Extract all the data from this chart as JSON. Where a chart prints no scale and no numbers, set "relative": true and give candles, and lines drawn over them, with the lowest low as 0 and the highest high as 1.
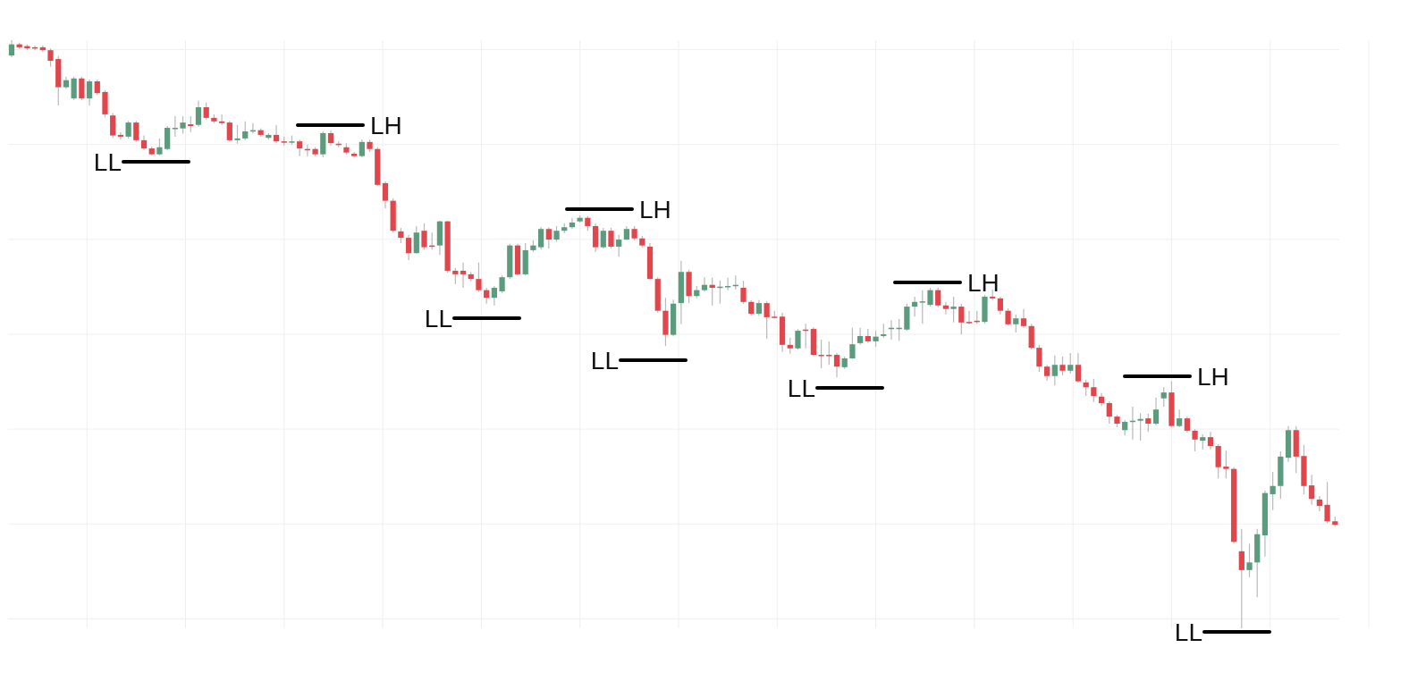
{
  "chart_data": {
    "type": "candlestick",
    "relative": true,
    "grid": true,
    "categories": [
      null,
      null,
      null,
      null,
      null,
      null,
      null,
      null,
      null,
      null,
      null,
      null,
      null,
      null,
      null,
      null,
      null,
      null,
      null,
      null,
      null,
      null,
      null,
      null,
      null,
      null,
      null,
      null,
      null,
      null,
      null,
      null,
      null,
      null,
      null,
      null,
      null,
      null,
      null,
      null,
      null,
      null,
      null,
      null,
      null,
      null,
      null,
      null,
      null,
      null,
      null,
      null,
      null,
      null,
      null,
      null,
      null,
      null,
      null,
      null,
      null,
      null,
      null,
      null,
      null,
      null,
      null,
      null,
      null,
      null,
      null,
      null,
      null,
      null,
      null,
      null,
      null,
      null,
      null,
      null,
      null,
      null,
      null,
      null,
      null,
      null,
      null,
      null,
      null,
      null,
      null,
      null,
      null,
      null,
      null,
      null,
      null,
      null,
      null,
      null,
      null,
      null,
      null,
      null,
      null,
      null,
      null,
      null,
      null,
      null,
      null,
      null,
      null,
      null,
      null,
      null,
      null,
      null,
      null,
      null,
      null,
      null,
      null,
      null,
      null,
      null,
      null,
      null,
      null,
      null,
      null,
      null,
      null,
      null,
      null,
      null,
      null,
      null,
      null,
      null,
      null,
      null,
      null,
      null,
      null,
      null,
      null,
      null,
      null,
      null,
      null,
      null,
      null,
      null,
      null,
      null,
      null,
      null,
      null,
      null,
      null,
      null,
      null,
      null,
      null,
      null,
      null,
      null,
      null,
      null,
      null
    ],
    "ohlc": [
      [
        0.974,
        1,
        0.971,
        0.993
      ],
      [
        0.993,
        0.996,
        0.985,
        0.988
      ],
      [
        0.99,
        0.993,
        0.983,
        0.986
      ],
      [
        0.988,
        0.991,
        0.983,
        0.986
      ],
      [
        0.988,
        0.991,
        0.98,
        0.983
      ],
      [
        0.983,
        0.986,
        0.955,
        0.965
      ],
      [
        0.968,
        0.973,
        0.889,
        0.92
      ],
      [
        0.92,
        0.938,
        0.917,
        0.932
      ],
      [
        0.901,
        0.938,
        0.898,
        0.935
      ],
      [
        0.935,
        0.938,
        0.898,
        0.901
      ],
      [
        0.901,
        0.933,
        0.889,
        0.93
      ],
      [
        0.93,
        0.933,
        0.907,
        0.91
      ],
      [
        0.912,
        0.915,
        0.869,
        0.874
      ],
      [
        0.872,
        0.876,
        0.834,
        0.838
      ],
      [
        0.839,
        0.844,
        0.831,
        0.836
      ],
      [
        0.836,
        0.863,
        0.833,
        0.86
      ],
      [
        0.86,
        0.863,
        0.827,
        0.83
      ],
      [
        0.83,
        0.838,
        0.813,
        0.816
      ],
      [
        0.816,
        0.819,
        0.804,
        0.806
      ],
      [
        0.806,
        0.833,
        0.804,
        0.818
      ],
      [
        0.815,
        0.854,
        0.813,
        0.851
      ],
      [
        0.85,
        0.871,
        0.836,
        0.851
      ],
      [
        0.85,
        0.871,
        0.841,
        0.86
      ],
      [
        0.857,
        0.871,
        0.844,
        0.854
      ],
      [
        0.856,
        0.897,
        0.853,
        0.886
      ],
      [
        0.886,
        0.894,
        0.865,
        0.868
      ],
      [
        0.868,
        0.874,
        0.859,
        0.862
      ],
      [
        0.862,
        0.874,
        0.856,
        0.859
      ],
      [
        0.86,
        0.863,
        0.828,
        0.83
      ],
      [
        0.83,
        0.856,
        0.824,
        0.833
      ],
      [
        0.833,
        0.862,
        0.83,
        0.845
      ],
      [
        0.845,
        0.859,
        0.841,
        0.847
      ],
      [
        0.847,
        0.85,
        0.836,
        0.839
      ],
      [
        0.834,
        0.842,
        0.831,
        0.839
      ],
      [
        0.839,
        0.856,
        0.825,
        0.828
      ],
      [
        0.828,
        0.836,
        0.821,
        0.827
      ],
      [
        0.827,
        0.838,
        0.822,
        0.828
      ],
      [
        0.828,
        0.831,
        0.803,
        0.816
      ],
      [
        0.815,
        0.822,
        0.803,
        0.813
      ],
      [
        0.815,
        0.818,
        0.803,
        0.806
      ],
      [
        0.806,
        0.845,
        0.801,
        0.842
      ],
      [
        0.842,
        0.847,
        0.821,
        0.825
      ],
      [
        0.824,
        0.828,
        0.818,
        0.822
      ],
      [
        0.818,
        0.825,
        0.806,
        0.809
      ],
      [
        0.807,
        0.81,
        0.8,
        0.803
      ],
      [
        0.803,
        0.831,
        0.801,
        0.827
      ],
      [
        0.827,
        0.831,
        0.81,
        0.815
      ],
      [
        0.815,
        0.818,
        0.752,
        0.754
      ],
      [
        0.757,
        0.76,
        0.714,
        0.727
      ],
      [
        0.727,
        0.731,
        0.673,
        0.676
      ],
      [
        0.675,
        0.681,
        0.655,
        0.664
      ],
      [
        0.664,
        0.669,
        0.626,
        0.638
      ],
      [
        0.638,
        0.684,
        0.637,
        0.673
      ],
      [
        0.676,
        0.689,
        0.644,
        0.648
      ],
      [
        0.651,
        0.673,
        0.644,
        0.649
      ],
      [
        0.651,
        0.693,
        0.635,
        0.692
      ],
      [
        0.692,
        0.693,
        0.605,
        0.608
      ],
      [
        0.608,
        0.613,
        0.585,
        0.602
      ],
      [
        0.608,
        0.622,
        0.579,
        0.602
      ],
      [
        0.602,
        0.606,
        0.59,
        0.594
      ],
      [
        0.594,
        0.622,
        0.572,
        0.575
      ],
      [
        0.575,
        0.579,
        0.552,
        0.562
      ],
      [
        0.562,
        0.582,
        0.549,
        0.579
      ],
      [
        0.573,
        0.6,
        0.57,
        0.597
      ],
      [
        0.597,
        0.654,
        0.594,
        0.651
      ],
      [
        0.651,
        0.654,
        0.6,
        0.602
      ],
      [
        0.602,
        0.655,
        0.6,
        0.643
      ],
      [
        0.643,
        0.66,
        0.64,
        0.651
      ],
      [
        0.648,
        0.682,
        0.644,
        0.679
      ],
      [
        0.679,
        0.682,
        0.646,
        0.661
      ],
      [
        0.661,
        0.684,
        0.657,
        0.676
      ],
      [
        0.676,
        0.689,
        0.672,
        0.682
      ],
      [
        0.682,
        0.698,
        0.679,
        0.69
      ],
      [
        0.692,
        0.702,
        0.69,
        0.698
      ],
      [
        0.698,
        0.701,
        0.676,
        0.684
      ],
      [
        0.684,
        0.689,
        0.64,
        0.648
      ],
      [
        0.648,
        0.681,
        0.646,
        0.676
      ],
      [
        0.676,
        0.681,
        0.646,
        0.649
      ],
      [
        0.649,
        0.669,
        0.632,
        0.661
      ],
      [
        0.661,
        0.684,
        0.66,
        0.679
      ],
      [
        0.679,
        0.684,
        0.66,
        0.663
      ],
      [
        0.663,
        0.667,
        0.648,
        0.651
      ],
      [
        0.649,
        0.655,
        0.593,
        0.594
      ],
      [
        0.594,
        0.597,
        0.537,
        0.54
      ],
      [
        0.54,
        0.562,
        0.48,
        0.499
      ],
      [
        0.499,
        0.559,
        0.497,
        0.552
      ],
      [
        0.553,
        0.625,
        0.517,
        0.606
      ],
      [
        0.606,
        0.61,
        0.553,
        0.565
      ],
      [
        0.565,
        0.582,
        0.561,
        0.575
      ],
      [
        0.575,
        0.597,
        0.572,
        0.584
      ],
      [
        0.584,
        0.596,
        0.549,
        0.579
      ],
      [
        0.579,
        0.591,
        0.552,
        0.581
      ],
      [
        0.581,
        0.596,
        0.575,
        0.582
      ],
      [
        0.582,
        0.6,
        0.576,
        0.584
      ],
      [
        0.579,
        0.591,
        0.552,
        0.555
      ],
      [
        0.555,
        0.558,
        0.532,
        0.535
      ],
      [
        0.535,
        0.558,
        0.532,
        0.553
      ],
      [
        0.553,
        0.556,
        0.492,
        0.529
      ],
      [
        0.53,
        0.54,
        0.527,
        0.529
      ],
      [
        0.53,
        0.537,
        0.47,
        0.482
      ],
      [
        0.482,
        0.494,
        0.467,
        0.476
      ],
      [
        0.476,
        0.509,
        0.474,
        0.506
      ],
      [
        0.508,
        0.518,
        0.476,
        0.506
      ],
      [
        0.509,
        0.512,
        0.464,
        0.465
      ],
      [
        0.465,
        0.491,
        0.442,
        0.464
      ],
      [
        0.465,
        0.488,
        0.448,
        0.464
      ],
      [
        0.465,
        0.468,
        0.427,
        0.445
      ],
      [
        0.444,
        0.462,
        0.441,
        0.459
      ],
      [
        0.459,
        0.511,
        0.458,
        0.483
      ],
      [
        0.485,
        0.511,
        0.482,
        0.497
      ],
      [
        0.497,
        0.509,
        0.485,
        0.488
      ],
      [
        0.488,
        0.506,
        0.479,
        0.496
      ],
      [
        0.497,
        0.518,
        0.494,
        0.5
      ],
      [
        0.509,
        0.524,
        0.491,
        0.511
      ],
      [
        0.509,
        0.526,
        0.489,
        0.511
      ],
      [
        0.508,
        0.552,
        0.506,
        0.547
      ],
      [
        0.547,
        0.564,
        0.53,
        0.555
      ],
      [
        0.555,
        0.575,
        0.518,
        0.556
      ],
      [
        0.55,
        0.579,
        0.547,
        0.575
      ],
      [
        0.575,
        0.579,
        0.546,
        0.549
      ],
      [
        0.549,
        0.555,
        0.534,
        0.543
      ],
      [
        0.543,
        0.564,
        0.52,
        0.547
      ],
      [
        0.547,
        0.552,
        0.5,
        0.52
      ],
      [
        0.521,
        0.54,
        0.517,
        0.52
      ],
      [
        0.523,
        0.54,
        0.518,
        0.521
      ],
      [
        0.521,
        0.567,
        0.518,
        0.564
      ],
      [
        0.564,
        0.576,
        0.558,
        0.561
      ],
      [
        0.561,
        0.564,
        0.534,
        0.54
      ],
      [
        0.54,
        0.544,
        0.515,
        0.517
      ],
      [
        0.517,
        0.534,
        0.503,
        0.527
      ],
      [
        0.527,
        0.543,
        0.511,
        0.514
      ],
      [
        0.514,
        0.518,
        0.474,
        0.477
      ],
      [
        0.477,
        0.482,
        0.436,
        0.445
      ],
      [
        0.445,
        0.448,
        0.421,
        0.429
      ],
      [
        0.429,
        0.464,
        0.413,
        0.448
      ],
      [
        0.448,
        0.462,
        0.43,
        0.438
      ],
      [
        0.438,
        0.468,
        0.433,
        0.448
      ],
      [
        0.448,
        0.468,
        0.418,
        0.42
      ],
      [
        0.418,
        0.423,
        0.395,
        0.41
      ],
      [
        0.41,
        0.424,
        0.385,
        0.395
      ],
      [
        0.394,
        0.4,
        0.378,
        0.383
      ],
      [
        0.383,
        0.386,
        0.348,
        0.36
      ],
      [
        0.36,
        0.363,
        0.342,
        0.348
      ],
      [
        0.337,
        0.354,
        0.328,
        0.351
      ],
      [
        0.351,
        0.377,
        0.321,
        0.353
      ],
      [
        0.353,
        0.366,
        0.319,
        0.356
      ],
      [
        0.357,
        0.365,
        0.334,
        0.348
      ],
      [
        0.348,
        0.392,
        0.345,
        0.372
      ],
      [
        0.391,
        0.41,
        0.377,
        0.401
      ],
      [
        0.401,
        0.42,
        0.342,
        0.344
      ],
      [
        0.344,
        0.372,
        0.342,
        0.357
      ],
      [
        0.357,
        0.36,
        0.333,
        0.336
      ],
      [
        0.336,
        0.339,
        0.301,
        0.321
      ],
      [
        0.319,
        0.33,
        0.304,
        0.325
      ],
      [
        0.325,
        0.334,
        0.304,
        0.31
      ],
      [
        0.31,
        0.313,
        0.255,
        0.274
      ],
      [
        0.275,
        0.302,
        0.255,
        0.271
      ],
      [
        0.271,
        0.274,
        0.144,
        0.147
      ],
      [
        0.131,
        0.169,
        0,
        0.099
      ],
      [
        0.099,
        0.144,
        0.087,
        0.112
      ],
      [
        0.112,
        0.169,
        0.053,
        0.16
      ],
      [
        0.158,
        0.234,
        0.122,
        0.23
      ],
      [
        0.228,
        0.266,
        0.201,
        0.242
      ],
      [
        0.242,
        0.301,
        0.22,
        0.292
      ],
      [
        0.29,
        0.344,
        0.283,
        0.337
      ],
      [
        0.337,
        0.344,
        0.264,
        0.292
      ],
      [
        0.293,
        0.312,
        0.228,
        0.242
      ],
      [
        0.243,
        0.261,
        0.21,
        0.22
      ],
      [
        0.219,
        0.225,
        0.199,
        0.208
      ],
      [
        0.21,
        0.249,
        0.179,
        0.182
      ],
      [
        0.182,
        0.19,
        0.173,
        0.176
      ]
    ],
    "annotations": [
      "LL",
      "LH",
      "LL",
      "LH",
      "LL",
      "LL",
      "LH",
      "LH",
      "LL"
    ]
  }
}
